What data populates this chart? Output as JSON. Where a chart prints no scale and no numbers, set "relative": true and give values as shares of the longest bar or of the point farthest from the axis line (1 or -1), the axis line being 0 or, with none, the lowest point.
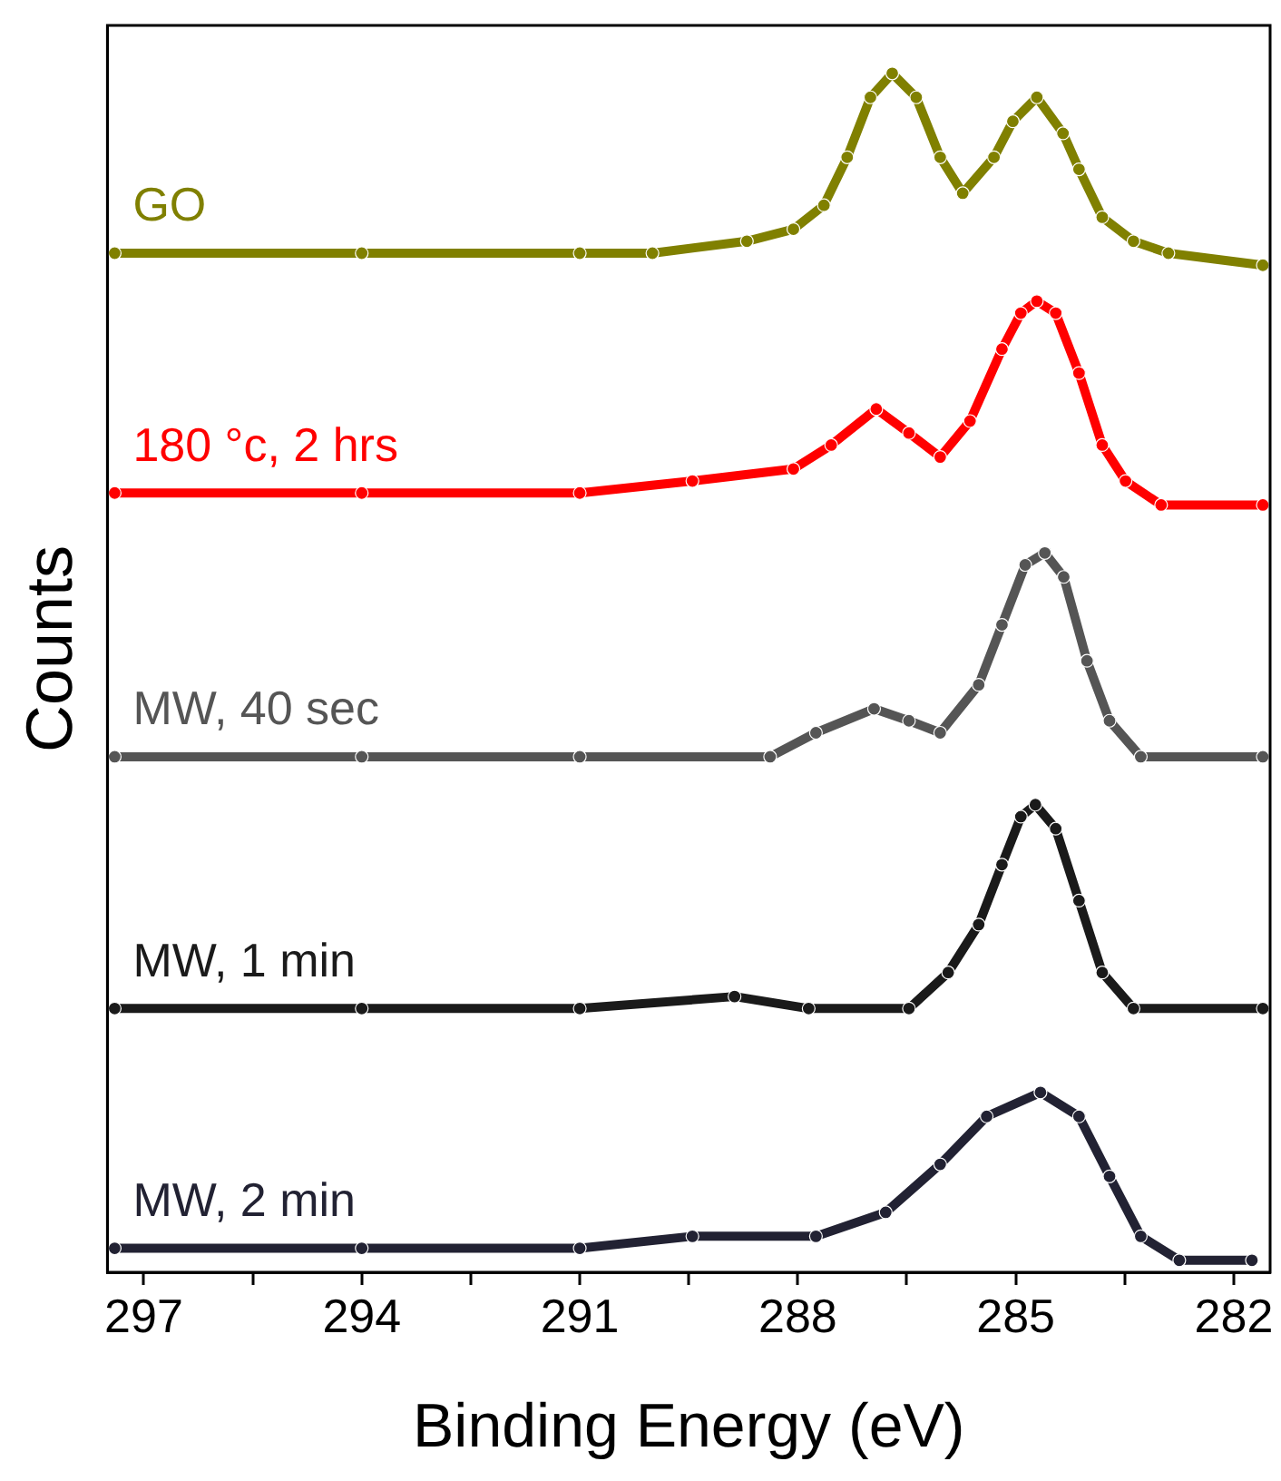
{
  "chart_data": {
    "type": "line",
    "xlabel": "Binding Energy (eV)",
    "ylabel": "Counts",
    "relative": true,
    "marker": "circle",
    "legend": false,
    "grid": false,
    "tick_labels": "x",
    "xlim": [
      297.5,
      281.5
    ],
    "xticks": [
      297,
      {
        "value": 295.5,
        "label": null
      },
      294,
      {
        "value": 292.5,
        "label": null
      },
      291,
      {
        "value": 289.5,
        "label": null
      },
      288,
      {
        "value": 286.5,
        "label": null
      },
      285,
      {
        "value": 283.5,
        "label": null
      },
      282
    ],
    "series": [
      {
        "name": "GO",
        "color": "#808000",
        "x": [
          297.4,
          294,
          291,
          290,
          288.7,
          288.06,
          287.64,
          287.32,
          287.0,
          286.7,
          286.37,
          286.04,
          285.73,
          285.3,
          285.04,
          284.71,
          284.35,
          284.13,
          283.81,
          283.38,
          282.9,
          281.6
        ],
        "values": [
          0.85,
          0.85,
          0.85,
          0.85,
          0.86,
          0.87,
          0.89,
          0.93,
          0.98,
          1.0,
          0.98,
          0.93,
          0.9,
          0.93,
          0.96,
          0.98,
          0.95,
          0.92,
          0.88,
          0.86,
          0.85,
          0.84
        ]
      },
      {
        "name": "180 °c, 2 hrs",
        "color": "#ff0000",
        "x": [
          297.4,
          294,
          291,
          289.45,
          288.06,
          287.54,
          286.92,
          286.47,
          286.04,
          285.63,
          285.19,
          284.93,
          284.71,
          284.45,
          284.13,
          283.81,
          283.49,
          283.0,
          281.6
        ],
        "values": [
          0.65,
          0.65,
          0.65,
          0.66,
          0.67,
          0.69,
          0.72,
          0.7,
          0.68,
          0.71,
          0.77,
          0.8,
          0.81,
          0.8,
          0.75,
          0.69,
          0.66,
          0.64,
          0.64
        ]
      },
      {
        "name": "MW, 40 sec",
        "color": "#555555",
        "x": [
          297.4,
          294,
          291,
          288.38,
          287.75,
          286.95,
          286.47,
          286.04,
          285.51,
          285.19,
          284.87,
          284.6,
          284.34,
          284.02,
          283.71,
          283.28,
          281.6
        ],
        "values": [
          0.43,
          0.43,
          0.43,
          0.43,
          0.45,
          0.47,
          0.46,
          0.45,
          0.49,
          0.54,
          0.59,
          0.6,
          0.58,
          0.51,
          0.46,
          0.43,
          0.43
        ]
      },
      {
        "name": "MW, 1 min",
        "color": "#1a1a1a",
        "x": [
          297.4,
          294,
          291,
          288.87,
          287.85,
          286.47,
          285.93,
          285.51,
          285.19,
          284.93,
          284.73,
          284.45,
          284.13,
          283.81,
          283.38,
          281.6
        ],
        "values": [
          0.22,
          0.22,
          0.22,
          0.23,
          0.22,
          0.22,
          0.25,
          0.29,
          0.34,
          0.38,
          0.39,
          0.37,
          0.31,
          0.25,
          0.22,
          0.22
        ]
      },
      {
        "name": "MW, 2 min",
        "color": "#222233",
        "x": [
          297.4,
          294,
          291,
          289.45,
          287.75,
          286.79,
          286.04,
          285.4,
          284.66,
          284.13,
          283.71,
          283.28,
          282.75,
          281.75
        ],
        "values": [
          0.02,
          0.02,
          0.02,
          0.03,
          0.03,
          0.05,
          0.09,
          0.13,
          0.15,
          0.13,
          0.08,
          0.03,
          0.01,
          0.01
        ]
      }
    ]
  }
}
